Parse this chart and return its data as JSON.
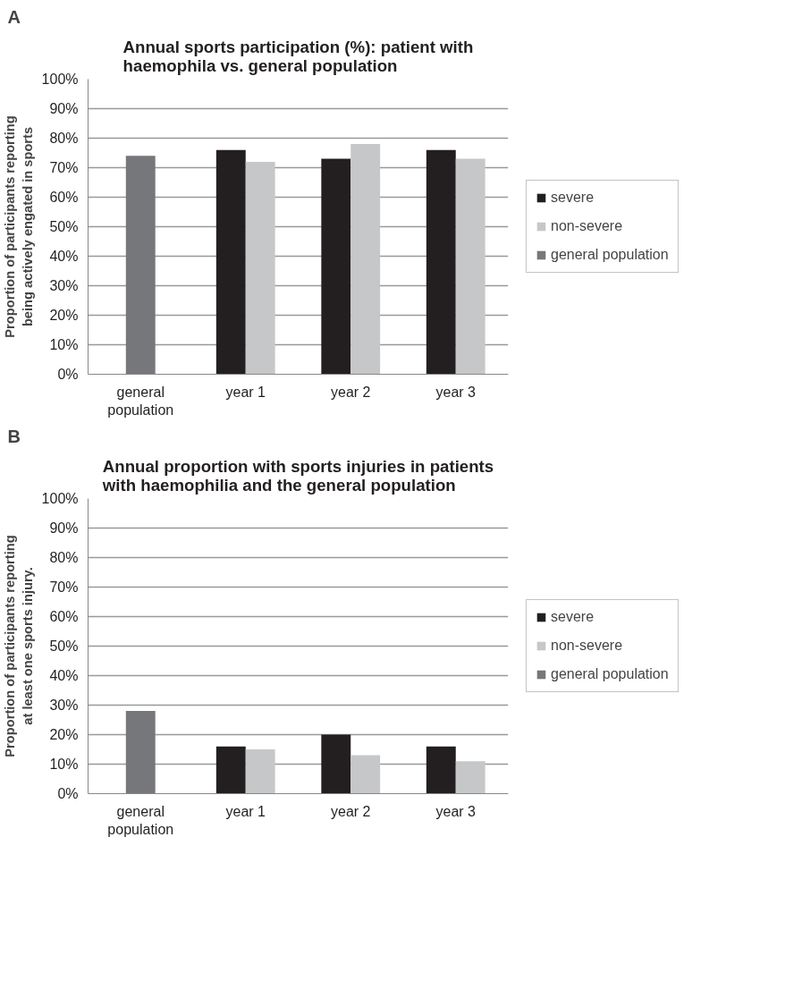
{
  "chart_data": [
    {
      "type": "bar",
      "annotations": [
        "A"
      ],
      "title": "Annual sports participation (%): patient with haemophila vs. general population",
      "ylabel": "Proportion of participants reporting being actively engated in sports",
      "categories": [
        "general population",
        "year 1",
        "year 2",
        "year 3"
      ],
      "series": [
        {
          "name": "severe",
          "color": "#231f20",
          "values": [
            null,
            76,
            73,
            76
          ]
        },
        {
          "name": "non-severe",
          "color": "#c6c7c9",
          "values": [
            null,
            72,
            78,
            73
          ]
        },
        {
          "name": "general population",
          "color": "#76777b",
          "values": [
            74,
            null,
            null,
            null
          ]
        }
      ],
      "ylim": [
        0,
        100
      ],
      "yticks": [
        {
          "value": 0,
          "label": "0%"
        },
        {
          "value": 10,
          "label": "10%"
        },
        {
          "value": 20,
          "label": "20%"
        },
        {
          "value": 30,
          "label": "30%"
        },
        {
          "value": 40,
          "label": "40%"
        },
        {
          "value": 50,
          "label": "50%"
        },
        {
          "value": 60,
          "label": "60%"
        },
        {
          "value": 70,
          "label": "70%"
        },
        {
          "value": 80,
          "label": "80%"
        },
        {
          "value": 90,
          "label": "90%"
        },
        {
          "value": 100,
          "label": "100%"
        }
      ],
      "grid": "y",
      "legend": "right"
    },
    {
      "type": "bar",
      "annotations": [
        "B"
      ],
      "title": "Annual proportion with sports injuries in patients with haemophilia and the general population",
      "ylabel": "Proportion of participants reporting at least one sports injury.",
      "categories": [
        "general population",
        "year 1",
        "year 2",
        "year 3"
      ],
      "series": [
        {
          "name": "severe",
          "color": "#231f20",
          "values": [
            null,
            16,
            20,
            16
          ]
        },
        {
          "name": "non-severe",
          "color": "#c6c7c9",
          "values": [
            null,
            15,
            13,
            11
          ]
        },
        {
          "name": "general population",
          "color": "#76777b",
          "values": [
            28,
            null,
            null,
            null
          ]
        }
      ],
      "ylim": [
        0,
        100
      ],
      "yticks": [
        {
          "value": 0,
          "label": "0%"
        },
        {
          "value": 10,
          "label": "10%"
        },
        {
          "value": 20,
          "label": "20%"
        },
        {
          "value": 30,
          "label": "30%"
        },
        {
          "value": 40,
          "label": "40%"
        },
        {
          "value": 50,
          "label": "50%"
        },
        {
          "value": 60,
          "label": "60%"
        },
        {
          "value": 70,
          "label": "70%"
        },
        {
          "value": 80,
          "label": "80%"
        },
        {
          "value": 90,
          "label": "90%"
        },
        {
          "value": 100,
          "label": "100%"
        }
      ],
      "grid": "y",
      "legend": "right"
    }
  ]
}
